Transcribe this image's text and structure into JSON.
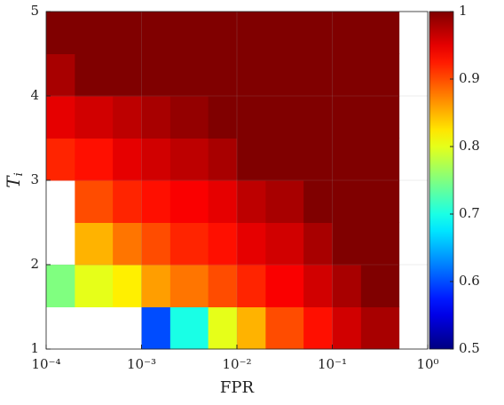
{
  "chart_data": {
    "type": "heatmap",
    "xlabel": "FPR",
    "ylabel": "T",
    "ylabel_sub": "i",
    "xscale": "log",
    "xbins": [
      0.0001,
      0.0002,
      0.0005,
      0.001,
      0.002,
      0.005,
      0.01,
      0.02,
      0.05,
      0.1,
      0.2,
      0.5
    ],
    "ybins": [
      1,
      1.5,
      2,
      2.5,
      3,
      3.5,
      4,
      4.5,
      5
    ],
    "z": [
      [
        null,
        null,
        null,
        0.6,
        0.7,
        0.8,
        0.85,
        0.9,
        0.93,
        0.96,
        0.98
      ],
      [
        0.75,
        0.8,
        0.82,
        0.86,
        0.88,
        0.9,
        0.92,
        0.94,
        0.96,
        0.98,
        1
      ],
      [
        null,
        0.85,
        0.88,
        0.9,
        0.92,
        0.93,
        0.95,
        0.96,
        0.98,
        1,
        1
      ],
      [
        null,
        0.9,
        0.92,
        0.93,
        0.94,
        0.95,
        0.97,
        0.98,
        1,
        1,
        1
      ],
      [
        0.92,
        0.93,
        0.95,
        0.96,
        0.97,
        0.98,
        1,
        1,
        1,
        1,
        1
      ],
      [
        0.95,
        0.96,
        0.97,
        0.98,
        0.99,
        1,
        1,
        1,
        1,
        1,
        1
      ],
      [
        0.98,
        1,
        1,
        1,
        1,
        1,
        1,
        1,
        1,
        1,
        1
      ],
      [
        1,
        1,
        1,
        1,
        1,
        1,
        1,
        1,
        1,
        1,
        1
      ]
    ],
    "xlim": [
      0.0001,
      1
    ],
    "ylim": [
      1,
      5
    ],
    "xticks": [
      {
        "value": 0.0001,
        "label": "10⁻⁴"
      },
      {
        "value": 0.001,
        "label": "10⁻³"
      },
      {
        "value": 0.01,
        "label": "10⁻²"
      },
      {
        "value": 0.1,
        "label": "10⁻¹"
      },
      {
        "value": 1,
        "label": "10⁰"
      }
    ],
    "yticks": [
      1,
      2,
      3,
      4,
      5
    ],
    "grid": true,
    "colormap": "jet",
    "clim": [
      0.5,
      1
    ],
    "cticks": [
      0.5,
      0.6,
      0.7,
      0.8,
      0.9,
      1
    ]
  }
}
